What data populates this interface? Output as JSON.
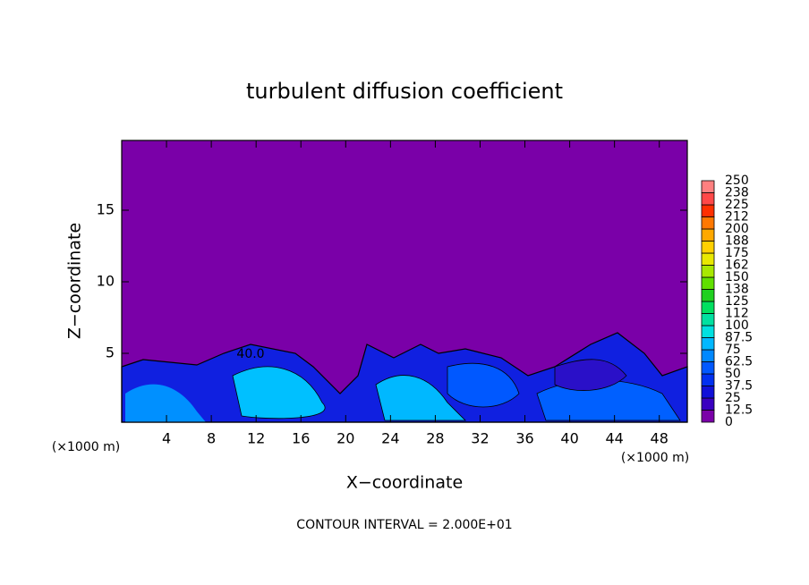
{
  "chart_data": {
    "type": "contour",
    "title": "turbulent diffusion coefficient",
    "x_label": "X−coordinate",
    "y_label": "Z−coordinate",
    "x_unit_left": "(×1000 m)",
    "x_unit_right": "(×1000 m)",
    "footer": "CONTOUR INTERVAL = 2.000E+01",
    "contour_label": "40.0",
    "xlim": [
      0,
      50.5
    ],
    "xticks": [
      4,
      8,
      12,
      16,
      20,
      24,
      28,
      32,
      36,
      40,
      44,
      48
    ],
    "ylim": [
      0,
      20
    ],
    "yticks": [
      5,
      10,
      15
    ],
    "colorbar": {
      "levels": [
        0,
        12.5,
        25,
        37.5,
        50,
        62.5,
        75,
        87.5,
        100,
        112,
        125,
        138,
        150,
        162,
        175,
        188,
        200,
        212,
        225,
        238,
        250
      ],
      "colors": [
        "#7a00a8",
        "#3a00c0",
        "#1010d8",
        "#0030f0",
        "#0058ff",
        "#0088ff",
        "#00b8ff",
        "#00e0e0",
        "#00e0a0",
        "#00e060",
        "#20d020",
        "#60e000",
        "#a8e800",
        "#e8e800",
        "#ffd000",
        "#ffa800",
        "#ff7800",
        "#ff3000",
        "#ff4848",
        "#ff8080"
      ]
    }
  }
}
